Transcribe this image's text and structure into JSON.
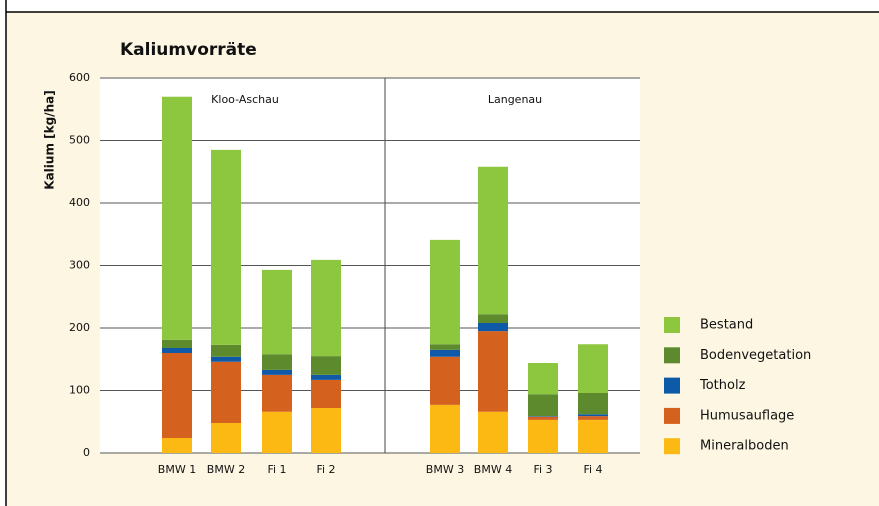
{
  "chart_data": {
    "type": "stacked_bar",
    "title": "Kaliumvorräte",
    "y_label": "Kalium [kg/ha]",
    "groups": [
      "Kloo-Aschau",
      "Langenau"
    ],
    "categories": [
      "BMW 1",
      "BMW 2",
      "Fi 1",
      "Fi 2",
      "BMW 3",
      "BMW 4",
      "Fi 3",
      "Fi 4"
    ],
    "series": [
      {
        "name": "Mineralboden",
        "color": "#fdb913",
        "values": [
          24,
          48,
          66,
          72,
          77,
          66,
          53,
          53
        ]
      },
      {
        "name": "Humusauflage",
        "color": "#d4621e",
        "values": [
          136,
          98,
          59,
          45,
          77,
          129,
          5,
          6
        ]
      },
      {
        "name": "Totholz",
        "color": "#0f5aa8",
        "values": [
          8,
          8,
          8,
          8,
          11,
          13,
          1,
          3
        ]
      },
      {
        "name": "Bodenvegetation",
        "color": "#5e8a2e",
        "values": [
          13,
          19,
          25,
          30,
          9,
          14,
          35,
          34
        ]
      },
      {
        "name": "Bestand",
        "color": "#8dc63f",
        "values": [
          389,
          312,
          135,
          154,
          167,
          236,
          50,
          78
        ]
      }
    ],
    "ylim": [
      0,
      600
    ],
    "yticks": [
      0,
      100,
      200,
      300,
      400,
      500,
      600
    ],
    "grid": true
  }
}
